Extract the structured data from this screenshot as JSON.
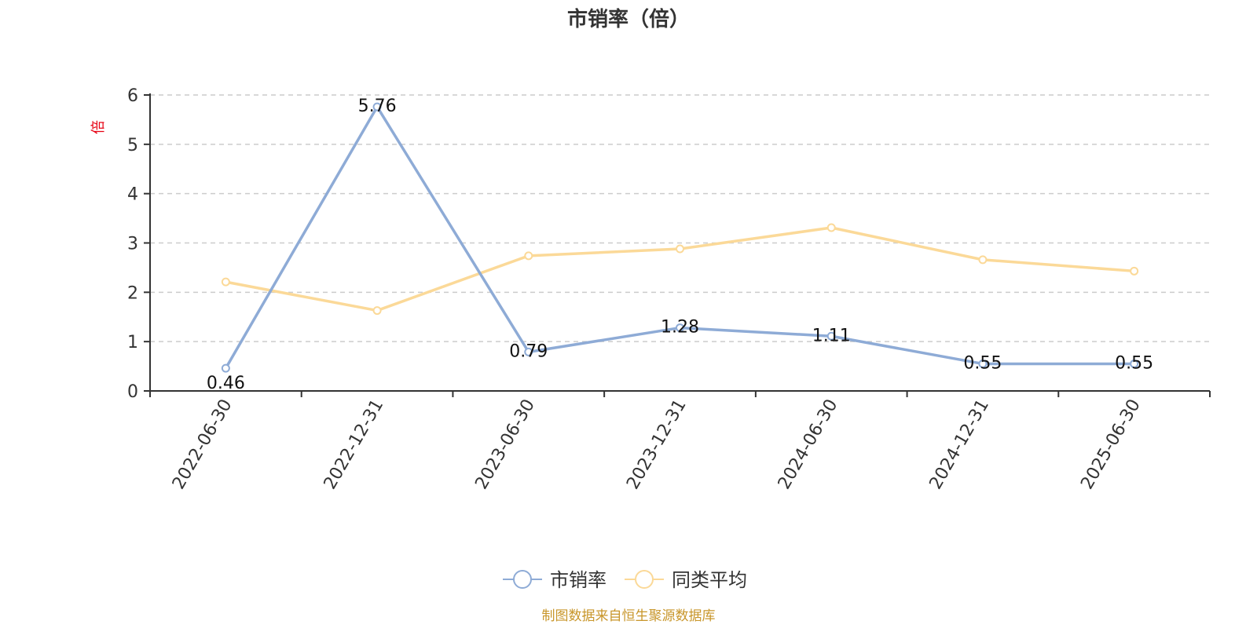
{
  "chart_data": {
    "type": "line",
    "title": "市销率（倍）",
    "ylabel": "倍",
    "categories": [
      "2022-06-30",
      "2022-12-31",
      "2023-06-30",
      "2023-12-31",
      "2024-06-30",
      "2024-12-31",
      "2025-06-30"
    ],
    "ylim": [
      0,
      6
    ],
    "yticks": [
      0,
      1,
      2,
      3,
      4,
      5,
      6
    ],
    "grid": true,
    "legend_position": "bottom",
    "series": [
      {
        "name": "市销率",
        "color": "#8eabd6",
        "values": [
          0.46,
          5.76,
          0.79,
          1.28,
          1.11,
          0.55,
          0.55
        ],
        "labels": [
          "0.46",
          "5.76",
          "0.79",
          "1.28",
          "1.11",
          "0.55",
          "0.55"
        ]
      },
      {
        "name": "同类平均",
        "color": "#fbd998",
        "values": [
          2.21,
          1.63,
          2.74,
          2.88,
          3.31,
          2.66,
          2.43
        ]
      }
    ]
  },
  "source_note": "制图数据来自恒生聚源数据库"
}
